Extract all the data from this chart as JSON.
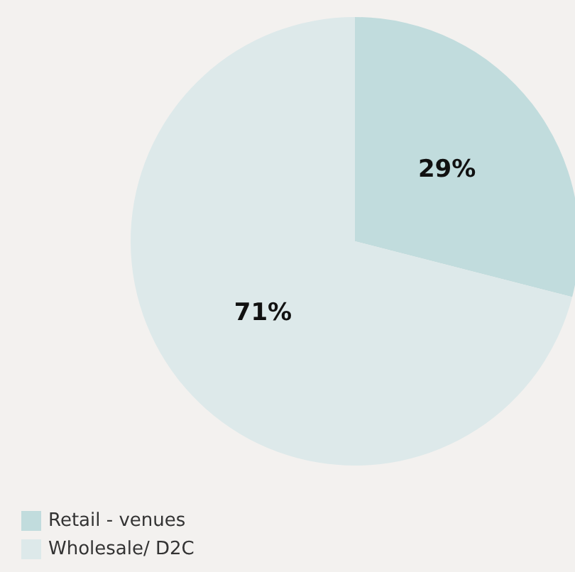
{
  "chart_data": {
    "type": "pie",
    "categories": [
      "Retail - venues",
      "Wholesale/ D2C"
    ],
    "values": [
      29,
      71
    ],
    "colors": [
      "#c1dcdd",
      "#dde9ea"
    ],
    "legend": "bottom left",
    "value_labels": [
      "29%",
      "71%"
    ]
  }
}
